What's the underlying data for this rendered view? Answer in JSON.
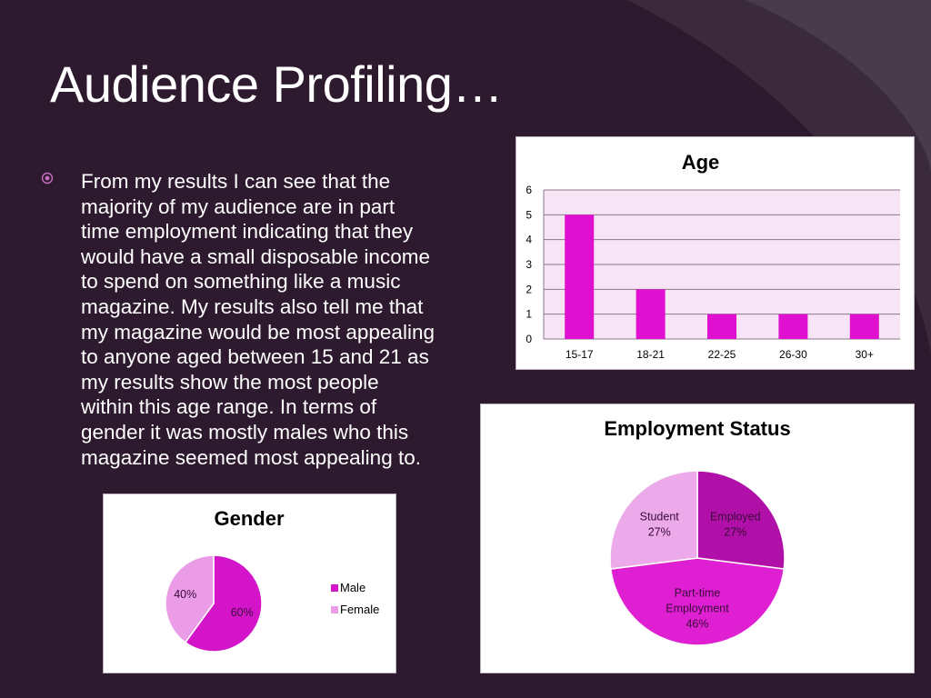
{
  "slide": {
    "title": "Audience Profiling…",
    "bullet_text": "From my results I can see that the majority of my audience are in part time employment indicating that they would have a small disposable income to spend on something like a music magazine.  My results also tell me that my magazine would be most appealing to anyone aged between 15 and 21 as my results show the  most people within this age range.  In terms of gender it was mostly males who this magazine seemed most appealing to.",
    "bullet_lines": [
      "From my results I can see that the",
      "majority of my audience are in part",
      "time employment indicating that they",
      "would have a small disposable income",
      "to spend on something like a music",
      "magazine.  My results also tell me that",
      "my magazine would be most appealing",
      "to anyone aged between 15 and 21 as",
      "my results show the  most people",
      "within this age range.  In terms of",
      "gender it was mostly males who this",
      "magazine seemed most appealing to."
    ],
    "colors": {
      "background": "#2e1a2e",
      "text": "#ffffff",
      "bar": "#e010d0",
      "plot_area": "#f7e4f5"
    },
    "bullet_icon": "circled-dot-bullet-icon"
  },
  "chart_data": [
    {
      "type": "bar",
      "title": "Age",
      "categories": [
        "15-17",
        "18-21",
        "22-25",
        "26-30",
        "30+"
      ],
      "values": [
        5,
        2,
        1,
        1,
        1
      ],
      "ylim": [
        0,
        6
      ],
      "yticks": [
        "0",
        "1",
        "2",
        "3",
        "4",
        "5",
        "6"
      ],
      "grid": true,
      "legend": "none"
    },
    {
      "type": "pie",
      "title": "Employment Status",
      "slices": [
        {
          "label": "Employed",
          "percent_label": "27%",
          "value": 27,
          "color": "#b010a8"
        },
        {
          "label": "Part-time Employment",
          "label_lines": [
            "Part-time",
            "Employment"
          ],
          "percent_label": "46%",
          "value": 46,
          "color": "#de20d2"
        },
        {
          "label": "Student",
          "percent_label": "27%",
          "value": 27,
          "color": "#ecaaea"
        }
      ],
      "legend": "none"
    },
    {
      "type": "pie",
      "title": "Gender",
      "slices": [
        {
          "label": "Male",
          "percent_label": "60%",
          "value": 60,
          "color": "#d414c8"
        },
        {
          "label": "Female",
          "percent_label": "40%",
          "value": 40,
          "color": "#eb9ce7"
        }
      ],
      "legend": "right"
    }
  ]
}
